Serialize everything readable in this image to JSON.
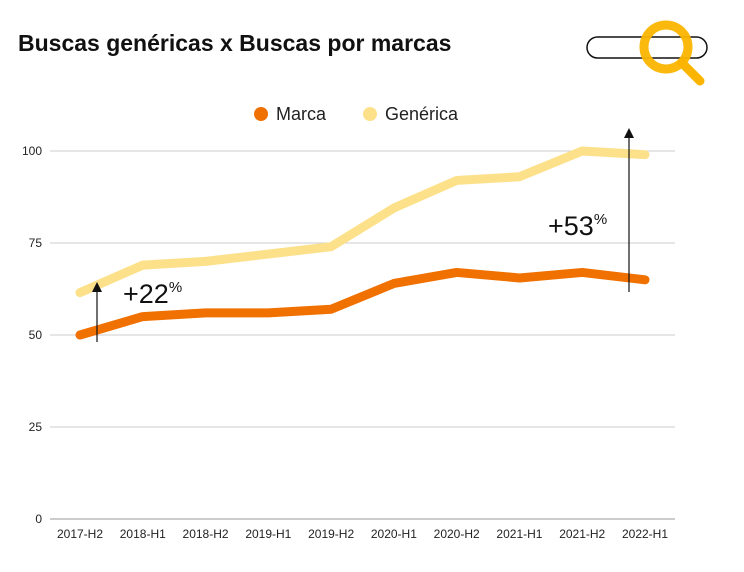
{
  "title": "Buscas genéricas x Buscas por marcas",
  "icon": "search-bar-magnifier-icon",
  "colors": {
    "marca": "#F07000",
    "generica": "#FDE18A",
    "icon": "#FBB500",
    "grid": "#cccccc"
  },
  "chart_data": {
    "type": "line",
    "title": "Buscas genéricas x Buscas por marcas",
    "xlabel": "",
    "ylabel": "",
    "ylim": [
      0,
      100
    ],
    "yticks": [
      0,
      25,
      50,
      75,
      100
    ],
    "grid": true,
    "legend_placement": "top-center",
    "categories": [
      "2017-H2",
      "2018-H1",
      "2018-H2",
      "2019-H1",
      "2019-H2",
      "2020-H1",
      "2020-H2",
      "2021-H1",
      "2021-H2",
      "2022-H1"
    ],
    "series": [
      {
        "name": "Marca",
        "color": "#F07000",
        "values": [
          50,
          55,
          56,
          56,
          57,
          64,
          67,
          65.5,
          67,
          65
        ]
      },
      {
        "name": "Genérica",
        "color": "#FDE18A",
        "values": [
          61.5,
          69,
          70,
          72,
          74,
          84.5,
          92,
          93,
          100,
          99
        ]
      }
    ],
    "annotations": [
      {
        "value": "+22",
        "unit": "%",
        "at": "2017-H2"
      },
      {
        "value": "+53",
        "unit": "%",
        "at": "2022-H1"
      }
    ]
  }
}
